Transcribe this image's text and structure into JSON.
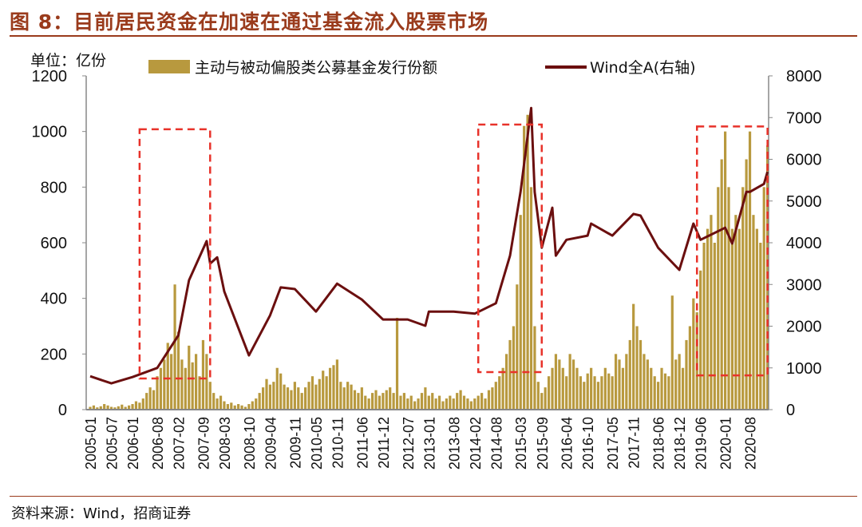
{
  "title": "图 8：目前居民资金在加速在通过基金流入股票市场",
  "source": "资料来源：Wind，招商证券",
  "colors": {
    "title": "#9a3b1c",
    "bars": "#b8993e",
    "line": "#6b0f0f",
    "box": "#e8322a"
  },
  "chart_data": {
    "type": "bar+line",
    "unit_label": "单位：亿份",
    "x_start": "2005-01",
    "x_tick_labels": [
      "2005-01",
      "2005-07",
      "2006-01",
      "2006-08",
      "2007-02",
      "2007-09",
      "2008-03",
      "2008-10",
      "2009-04",
      "2009-11",
      "2010-05",
      "2010-11",
      "2011-06",
      "2011-12",
      "2012-07",
      "2013-01",
      "2013-08",
      "2014-02",
      "2014-08",
      "2015-03",
      "2015-09",
      "2016-04",
      "2016-10",
      "2017-05",
      "2017-11",
      "2018-06",
      "2018-12",
      "2019-06",
      "2020-01",
      "2020-08"
    ],
    "left_axis": {
      "range": [
        0,
        1200
      ],
      "ticks": [
        "0",
        "200",
        "400",
        "600",
        "800",
        "1000",
        "1200"
      ]
    },
    "right_axis": {
      "range": [
        0,
        8000
      ],
      "ticks": [
        "0",
        "1000",
        "2000",
        "3000",
        "4000",
        "5000",
        "6000",
        "7000",
        "8000"
      ]
    },
    "series": [
      {
        "name": "主动与被动偏股类公募基金发行份额",
        "type": "bar",
        "axis": "left",
        "monthly_values": [
          10,
          15,
          8,
          12,
          20,
          15,
          10,
          8,
          12,
          18,
          10,
          15,
          20,
          30,
          25,
          40,
          60,
          80,
          70,
          120,
          150,
          180,
          240,
          200,
          450,
          280,
          180,
          150,
          230,
          170,
          200,
          120,
          250,
          200,
          100,
          60,
          40,
          50,
          30,
          20,
          25,
          15,
          20,
          15,
          10,
          20,
          30,
          40,
          60,
          80,
          110,
          90,
          100,
          150,
          130,
          90,
          80,
          70,
          100,
          80,
          60,
          80,
          100,
          120,
          90,
          110,
          140,
          120,
          150,
          160,
          180,
          100,
          80,
          100,
          90,
          70,
          60,
          80,
          50,
          40,
          60,
          70,
          50,
          60,
          70,
          80,
          60,
          330,
          50,
          60,
          40,
          50,
          30,
          40,
          60,
          80,
          50,
          60,
          40,
          50,
          30,
          40,
          50,
          40,
          60,
          70,
          50,
          40,
          30,
          40,
          50,
          60,
          40,
          70,
          80,
          100,
          120,
          150,
          200,
          250,
          300,
          450,
          700,
          1020,
          1060,
          800,
          300,
          100,
          60,
          80,
          120,
          150,
          200,
          180,
          150,
          120,
          200,
          180,
          150,
          120,
          100,
          130,
          150,
          120,
          100,
          120,
          150,
          130,
          120,
          200,
          180,
          150,
          200,
          250,
          380,
          300,
          250,
          200,
          180,
          150,
          120,
          100,
          150,
          130,
          120,
          410,
          180,
          200,
          150,
          250,
          300,
          400,
          350,
          500,
          600,
          650,
          700,
          600,
          800,
          900,
          1000,
          800,
          650,
          700,
          650,
          800,
          900,
          1000,
          700,
          650,
          600,
          800,
          950
        ]
      },
      {
        "name": "Wind全A(右轴)",
        "type": "line",
        "axis": "right",
        "points": [
          [
            "2005-01",
            800
          ],
          [
            "2005-07",
            630
          ],
          [
            "2006-01",
            780
          ],
          [
            "2006-08",
            1000
          ],
          [
            "2007-02",
            1780
          ],
          [
            "2007-05",
            3100
          ],
          [
            "2007-10",
            4040
          ],
          [
            "2007-11",
            3500
          ],
          [
            "2008-01",
            3650
          ],
          [
            "2008-03",
            2830
          ],
          [
            "2008-10",
            1300
          ],
          [
            "2009-04",
            2260
          ],
          [
            "2009-07",
            2930
          ],
          [
            "2009-11",
            2890
          ],
          [
            "2010-05",
            2350
          ],
          [
            "2010-11",
            3020
          ],
          [
            "2011-06",
            2640
          ],
          [
            "2011-12",
            2160
          ],
          [
            "2012-07",
            2160
          ],
          [
            "2012-12",
            2010
          ],
          [
            "2013-01",
            2350
          ],
          [
            "2013-08",
            2350
          ],
          [
            "2014-02",
            2300
          ],
          [
            "2014-08",
            2550
          ],
          [
            "2014-12",
            3690
          ],
          [
            "2015-03",
            5220
          ],
          [
            "2015-06",
            7230
          ],
          [
            "2015-07",
            5220
          ],
          [
            "2015-09",
            3880
          ],
          [
            "2015-12",
            4840
          ],
          [
            "2016-01",
            3690
          ],
          [
            "2016-04",
            4070
          ],
          [
            "2016-10",
            4170
          ],
          [
            "2016-11",
            4460
          ],
          [
            "2017-05",
            4170
          ],
          [
            "2017-11",
            4690
          ],
          [
            "2018-01",
            4650
          ],
          [
            "2018-06",
            3880
          ],
          [
            "2018-12",
            3350
          ],
          [
            "2019-04",
            4460
          ],
          [
            "2019-06",
            4070
          ],
          [
            "2020-01",
            4360
          ],
          [
            "2020-03",
            3980
          ],
          [
            "2020-07",
            5220
          ],
          [
            "2020-08",
            5220
          ],
          [
            "2020-12",
            5410
          ],
          [
            "2021-01",
            5700
          ]
        ]
      }
    ],
    "annotations": [
      {
        "type": "dashed-box",
        "from": "2006-03",
        "to": "2007-11",
        "left_axis_range": [
          112,
          1008
        ]
      },
      {
        "type": "dashed-box",
        "from": "2014-03",
        "to": "2015-09",
        "left_axis_range": [
          135,
          1025
        ]
      },
      {
        "type": "dashed-box",
        "from": "2019-05",
        "to": "2021-01",
        "left_axis_range": [
          123,
          1018
        ]
      }
    ],
    "legend_placement": "top"
  }
}
